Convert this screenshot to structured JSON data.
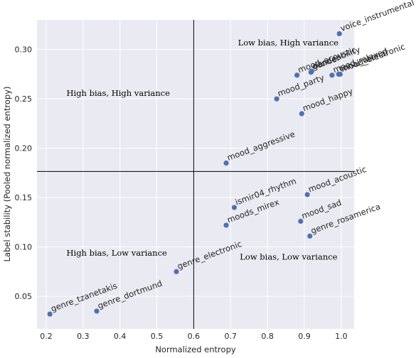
{
  "chart_data": {
    "type": "scatter",
    "title": "",
    "xlabel": "Normalized entropy",
    "ylabel": "Label stability (Pooled normalized entropy)",
    "xlim": [
      0.175,
      1.035
    ],
    "ylim": [
      0.017,
      0.33
    ],
    "xticks": [
      0.2,
      0.3,
      0.4,
      0.5,
      0.6,
      0.7,
      0.8,
      0.9,
      1.0
    ],
    "xtick_labels": [
      "0.2",
      "0.3",
      "0.4",
      "0.5",
      "0.6",
      "0.7",
      "0.8",
      "0.9",
      "1.0"
    ],
    "yticks": [
      0.05,
      0.1,
      0.15,
      0.2,
      0.25,
      0.3
    ],
    "ytick_labels": [
      "0.05",
      "0.10",
      "0.15",
      "0.20",
      "0.25",
      "0.30"
    ],
    "grid": true,
    "background_color": "#eaeaf2",
    "grid_color": "#ffffff",
    "marker_color": "#4c72b0",
    "reference_lines": {
      "x": 0.6,
      "y": 0.1765,
      "color": "#000000"
    },
    "quadrant_labels": [
      {
        "text": "Low bias, High variance",
        "x": 0.72,
        "y": 0.304
      },
      {
        "text": "High bias, High variance",
        "x": 0.255,
        "y": 0.253
      },
      {
        "text": "High bias, Low variance",
        "x": 0.255,
        "y": 0.091
      },
      {
        "text": "Low bias, Low variance",
        "x": 0.725,
        "y": 0.087
      }
    ],
    "points": [
      {
        "label": "voice_instrumental",
        "x": 0.995,
        "y": 0.316
      },
      {
        "label": "mood_electronic",
        "x": 0.997,
        "y": 0.275
      },
      {
        "label": "mood_relaxed",
        "x": 0.975,
        "y": 0.274
      },
      {
        "label": "danceability",
        "x": 0.92,
        "y": 0.278
      },
      {
        "label": "tonal_atonal",
        "x": 0.993,
        "y": 0.275
      },
      {
        "label": "gender",
        "x": 0.918,
        "y": 0.277
      },
      {
        "label": "mood_acoustic",
        "x": 0.88,
        "y": 0.274
      },
      {
        "label": "mood_party",
        "x": 0.825,
        "y": 0.25
      },
      {
        "label": "mood_happy",
        "x": 0.893,
        "y": 0.235
      },
      {
        "label": "mood_aggressive",
        "x": 0.688,
        "y": 0.185
      },
      {
        "label": "ismir04_rhythm",
        "x": 0.71,
        "y": 0.14
      },
      {
        "label": "mood_acoustic",
        "x": 0.908,
        "y": 0.153
      },
      {
        "label": "moods_mirex",
        "x": 0.688,
        "y": 0.122
      },
      {
        "label": "mood_sad",
        "x": 0.89,
        "y": 0.126
      },
      {
        "label": "genre_rosamerica",
        "x": 0.915,
        "y": 0.111
      },
      {
        "label": "genre_electronic",
        "x": 0.553,
        "y": 0.075
      },
      {
        "label": "genre_dortmund",
        "x": 0.337,
        "y": 0.035
      },
      {
        "label": "genre_tzanetakis",
        "x": 0.21,
        "y": 0.032
      }
    ]
  }
}
